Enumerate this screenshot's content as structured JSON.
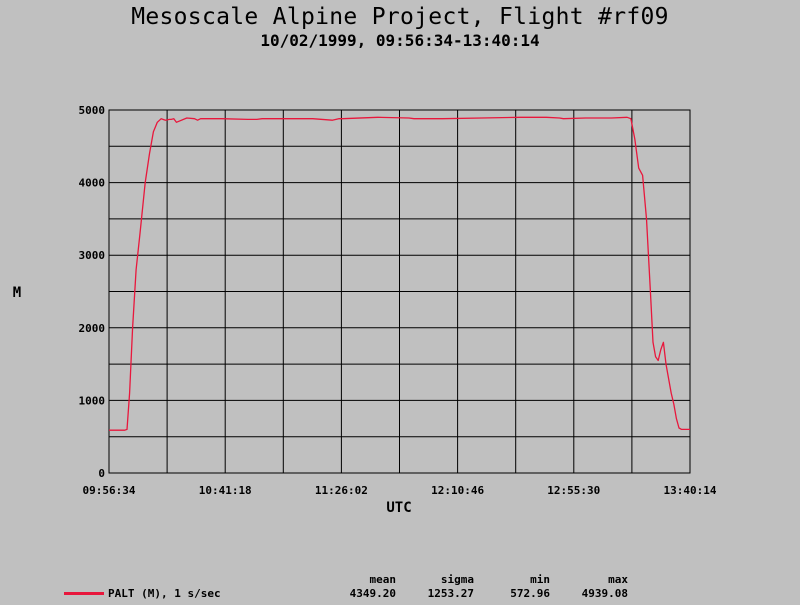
{
  "header": {
    "title": "Mesoscale Alpine Project, Flight #rf09",
    "subtitle": "10/02/1999, 09:56:34-13:40:14"
  },
  "chart_data": {
    "type": "line",
    "xlabel": "UTC",
    "ylabel": "M",
    "xlim": [
      "09:56:34",
      "13:40:14"
    ],
    "ylim": [
      0,
      5000
    ],
    "x_ticks": [
      "09:56:34",
      "10:41:18",
      "11:26:02",
      "12:10:46",
      "12:55:30",
      "13:40:14"
    ],
    "y_ticks": [
      "0",
      "1000",
      "2000",
      "3000",
      "4000",
      "5000"
    ],
    "grid": true,
    "series": [
      {
        "name": "PALT (M), 1 s/sec",
        "color": "#e8173c",
        "x": [
          "09:56:34",
          "10:02:40",
          "10:03:30",
          "10:04:30",
          "10:05:40",
          "10:07:00",
          "10:08:30",
          "10:10:30",
          "10:12:10",
          "10:13:40",
          "10:15:10",
          "10:16:40",
          "10:18:20",
          "10:19:50",
          "10:20:30",
          "10:21:30",
          "10:22:30",
          "10:26:30",
          "10:29:30",
          "10:30:40",
          "10:31:50",
          "10:40:00",
          "10:50:00",
          "10:53:30",
          "10:55:30",
          "11:05:00",
          "11:15:00",
          "11:22:30",
          "11:25:00",
          "11:26:30",
          "11:40:00",
          "11:52:00",
          "11:54:00",
          "11:56:30",
          "12:05:00",
          "12:20:00",
          "12:35:00",
          "12:45:00",
          "12:50:00",
          "12:51:30",
          "13:00:00",
          "13:10:00",
          "13:16:00",
          "13:17:30",
          "13:19:00",
          "13:20:30",
          "13:22:00",
          "13:23:30",
          "13:25:00",
          "13:26:00",
          "13:27:00",
          "13:28:00",
          "13:29:00",
          "13:30:00",
          "13:31:00",
          "13:32:00",
          "13:33:00",
          "13:34:00",
          "13:35:00",
          "13:36:00",
          "13:37:00",
          "13:38:00",
          "13:39:00",
          "13:40:14"
        ],
        "values": [
          590,
          590,
          600,
          1100,
          2000,
          2800,
          3300,
          4000,
          4400,
          4700,
          4830,
          4880,
          4860,
          4870,
          4870,
          4880,
          4830,
          4890,
          4880,
          4860,
          4880,
          4880,
          4870,
          4870,
          4880,
          4880,
          4880,
          4860,
          4880,
          4880,
          4900,
          4890,
          4880,
          4880,
          4880,
          4890,
          4900,
          4900,
          4890,
          4880,
          4890,
          4890,
          4900,
          4880,
          4600,
          4200,
          4100,
          3500,
          2500,
          1800,
          1600,
          1550,
          1700,
          1800,
          1500,
          1300,
          1100,
          950,
          750,
          620,
          600,
          600,
          600,
          600
        ]
      }
    ]
  },
  "legend": {
    "label": "PALT (M), 1 s/sec"
  },
  "stats": {
    "headers": [
      "mean",
      "sigma",
      "min",
      "max"
    ],
    "values": [
      "4349.20",
      "1253.27",
      "572.96",
      "4939.08"
    ]
  }
}
